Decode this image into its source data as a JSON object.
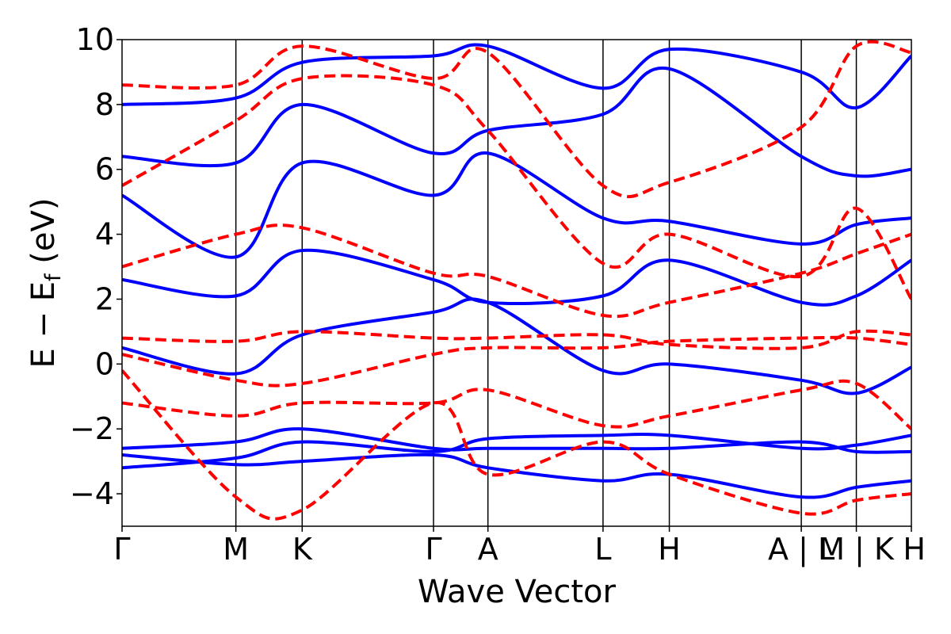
{
  "chart_data": {
    "type": "line",
    "title": "",
    "xlabel": "Wave Vector",
    "ylabel": "E − E_f (eV)",
    "ylabel_parts": {
      "main": "E − E",
      "sub": "f",
      "tail": " (eV)"
    },
    "ylim": [
      -5,
      10
    ],
    "yticks": [
      -4,
      -2,
      0,
      2,
      4,
      6,
      8,
      10
    ],
    "ytick_labels": [
      "−4",
      "−2",
      "0",
      "2",
      "4",
      "6",
      "8",
      "10"
    ],
    "xlim": [
      0,
      12.62
    ],
    "kpoints": [
      {
        "label": "Γ",
        "x": 0.0
      },
      {
        "label": "M",
        "x": 1.82
      },
      {
        "label": "K",
        "x": 2.88
      },
      {
        "label": "Γ",
        "x": 4.98
      },
      {
        "label": "A",
        "x": 5.85
      },
      {
        "label": "L",
        "x": 7.69
      },
      {
        "label": "H",
        "x": 8.75
      },
      {
        "label": "A | L",
        "x": 10.86
      },
      {
        "label": "M | K",
        "x": 11.74
      },
      {
        "label": "H",
        "x": 12.62
      }
    ],
    "grid": false,
    "legend": "none",
    "series_colors": {
      "blue": "#0000ff",
      "red": "#ff0000"
    },
    "series": [
      {
        "style": "solid",
        "color": "#0000ff",
        "x": [
          0,
          1.82,
          2.88,
          4.98,
          5.85,
          7.69,
          8.75,
          10.86,
          11.74,
          12.62
        ],
        "y": [
          -3.2,
          -2.9,
          -2.4,
          -2.7,
          -2.3,
          -2.2,
          -2.2,
          -2.6,
          -2.5,
          -2.2
        ]
      },
      {
        "style": "solid",
        "color": "#0000ff",
        "x": [
          0,
          1.82,
          2.88,
          4.98,
          5.85,
          7.69,
          8.75,
          10.86,
          11.74,
          12.62
        ],
        "y": [
          -2.6,
          -2.4,
          -2.0,
          -2.6,
          -2.6,
          -2.6,
          -2.6,
          -2.4,
          -2.7,
          -2.7
        ]
      },
      {
        "style": "solid",
        "color": "#0000ff",
        "x": [
          0,
          1.82,
          2.88,
          4.98,
          5.85,
          7.69,
          8.75,
          10.86,
          11.74,
          12.62
        ],
        "y": [
          -2.8,
          -3.1,
          -3.0,
          -2.8,
          -3.2,
          -3.6,
          -3.4,
          -4.1,
          -3.8,
          -3.6
        ]
      },
      {
        "style": "solid",
        "color": "#0000ff",
        "x": [
          0,
          1.82,
          2.88,
          4.98,
          5.85,
          7.69,
          8.75,
          10.86,
          11.74,
          12.62
        ],
        "y": [
          0.5,
          -0.3,
          0.9,
          1.6,
          1.9,
          -0.2,
          0.0,
          -0.5,
          -0.9,
          -0.1
        ]
      },
      {
        "style": "solid",
        "color": "#0000ff",
        "x": [
          0,
          1.82,
          2.88,
          4.98,
          5.85,
          7.69,
          8.75,
          10.86,
          11.74,
          12.62
        ],
        "y": [
          2.6,
          2.1,
          3.5,
          2.6,
          1.9,
          2.1,
          3.2,
          1.9,
          2.1,
          3.2
        ]
      },
      {
        "style": "solid",
        "color": "#0000ff",
        "x": [
          0,
          1.82,
          2.88,
          4.98,
          5.85,
          7.69,
          8.75,
          10.86,
          11.74,
          12.62
        ],
        "y": [
          5.2,
          3.3,
          6.2,
          5.2,
          6.5,
          4.5,
          4.4,
          3.7,
          4.3,
          4.5
        ]
      },
      {
        "style": "solid",
        "color": "#0000ff",
        "x": [
          0,
          1.82,
          2.88,
          4.98,
          5.85,
          7.69,
          8.75,
          10.86,
          11.74,
          12.62
        ],
        "y": [
          6.4,
          6.2,
          8.0,
          6.5,
          7.2,
          7.7,
          9.1,
          6.4,
          5.8,
          6.0
        ]
      },
      {
        "style": "solid",
        "color": "#0000ff",
        "x": [
          0,
          1.82,
          2.88,
          4.98,
          5.85,
          7.69,
          8.75,
          10.86,
          11.74,
          12.62
        ],
        "y": [
          8.0,
          8.2,
          9.3,
          9.5,
          9.8,
          8.5,
          9.7,
          9.0,
          7.9,
          9.5
        ]
      },
      {
        "style": "dashed",
        "color": "#ff0000",
        "x": [
          0,
          1.82,
          2.88,
          4.98,
          5.85,
          7.69,
          8.75,
          10.86,
          11.74,
          12.62
        ],
        "y": [
          0.3,
          -0.5,
          -0.6,
          0.3,
          0.5,
          0.5,
          0.7,
          0.8,
          0.8,
          0.6
        ]
      },
      {
        "style": "dashed",
        "color": "#ff0000",
        "x": [
          0,
          1.82,
          2.88,
          4.98,
          5.85,
          7.69,
          8.75,
          10.86,
          11.74,
          12.62
        ],
        "y": [
          0.8,
          0.7,
          1.0,
          0.8,
          0.8,
          0.9,
          0.6,
          0.5,
          1.0,
          0.9
        ]
      },
      {
        "style": "dashed",
        "color": "#ff0000",
        "x": [
          0,
          1.82,
          2.88,
          4.98,
          5.85,
          7.69,
          8.75,
          10.86,
          11.74,
          12.62
        ],
        "y": [
          -1.2,
          -1.6,
          -1.2,
          -1.2,
          -0.8,
          -1.9,
          -1.6,
          -0.8,
          -0.6,
          -2.0
        ]
      },
      {
        "style": "dashed",
        "color": "#ff0000",
        "x": [
          0,
          1.82,
          2.88,
          4.98,
          5.85,
          7.69,
          8.75,
          10.86,
          11.74,
          12.62
        ],
        "y": [
          3.0,
          4.0,
          4.2,
          2.8,
          2.7,
          1.5,
          1.9,
          2.8,
          3.4,
          4.0
        ]
      },
      {
        "style": "dashed",
        "color": "#ff0000",
        "x": [
          0,
          1.82,
          2.88,
          4.98,
          5.85,
          7.69,
          8.75,
          10.86,
          11.74,
          12.62
        ],
        "y": [
          5.5,
          7.5,
          8.8,
          8.6,
          7.2,
          3.1,
          4.0,
          2.7,
          4.8,
          2.0
        ]
      },
      {
        "style": "dashed",
        "color": "#ff0000",
        "x": [
          0,
          1.82,
          2.88,
          4.98,
          5.85,
          7.69,
          8.75,
          10.86,
          11.74,
          12.62
        ],
        "y": [
          8.6,
          8.6,
          9.8,
          8.8,
          9.6,
          5.5,
          5.6,
          7.3,
          9.8,
          9.6
        ]
      },
      {
        "style": "dashed",
        "color": "#ff0000",
        "x": [
          0,
          1.82,
          2.88,
          4.98,
          5.85,
          7.69,
          8.75,
          10.86,
          11.74,
          12.62
        ],
        "y": [
          -0.2,
          -4.1,
          -4.5,
          -1.2,
          -3.4,
          -2.4,
          -3.4,
          -4.6,
          -4.2,
          -4.0
        ]
      }
    ]
  }
}
